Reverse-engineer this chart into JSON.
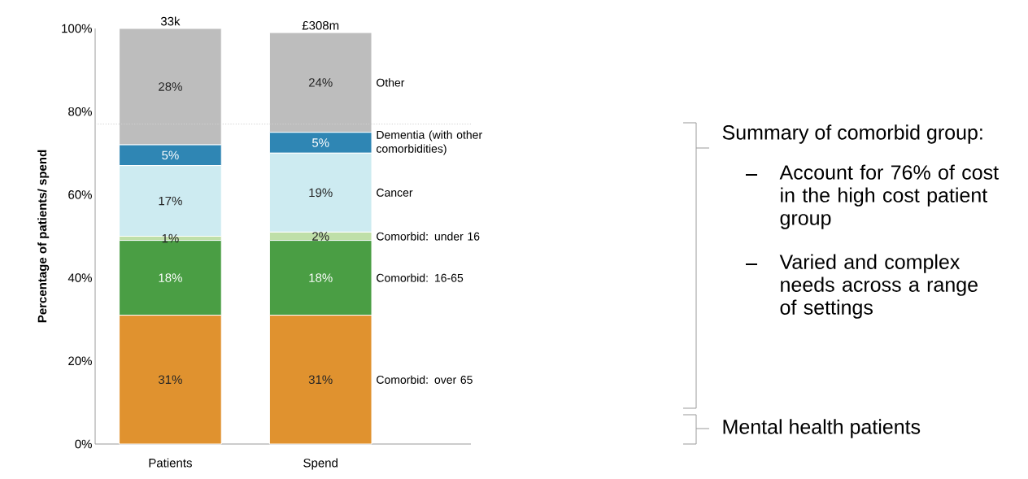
{
  "chart_data": {
    "type": "bar",
    "stacked": true,
    "ylabel": "Percentage of patients/ spend",
    "categories": [
      "Patients",
      "Spend"
    ],
    "series": [
      {
        "name": "Comorbid: over 65",
        "color": "#e0922f",
        "values": [
          31,
          31
        ],
        "value_labels": [
          "31%",
          "31%"
        ]
      },
      {
        "name": "Comorbid: 16-65",
        "color": "#4a9e44",
        "values": [
          18,
          18
        ],
        "value_labels": [
          "18%",
          "18%"
        ]
      },
      {
        "name": "Comorbid: under 16",
        "color": "#bfdfa8",
        "values": [
          1,
          2
        ],
        "value_labels": [
          "1%",
          "2%"
        ]
      },
      {
        "name": "Cancer",
        "color": "#cdebf1",
        "values": [
          17,
          19
        ],
        "value_labels": [
          "17%",
          "19%"
        ]
      },
      {
        "name": "Dementia (with other comorbidities)",
        "color": "#2f86b4",
        "values": [
          5,
          5
        ],
        "value_labels": [
          "5%",
          "5%"
        ]
      },
      {
        "name": "Other",
        "color": "#bdbdbd",
        "values": [
          28,
          24
        ],
        "value_labels": [
          "28%",
          "24%"
        ]
      }
    ],
    "ylim": [
      0,
      100
    ],
    "yticks": [
      {
        "value": 0,
        "label": "0%"
      },
      {
        "value": 20,
        "label": "20%"
      },
      {
        "value": 40,
        "label": "40%"
      },
      {
        "value": 60,
        "label": "60%"
      },
      {
        "value": 80,
        "label": "80%"
      },
      {
        "value": 100,
        "label": "100%"
      }
    ],
    "ref_lines": [
      {
        "axis": "y",
        "value": 77,
        "color": "#d0d0d0",
        "line_style": "dotted"
      }
    ],
    "annotations": [
      {
        "text": "33k",
        "x": "Patients",
        "y": 100
      },
      {
        "text": "£308m",
        "x": "Spend",
        "y": 99
      },
      "Summary of comorbid group:",
      "Account for 76% of cost in the high cost patient group",
      "Varied and complex needs across a range of settings",
      "Mental health patients"
    ]
  }
}
